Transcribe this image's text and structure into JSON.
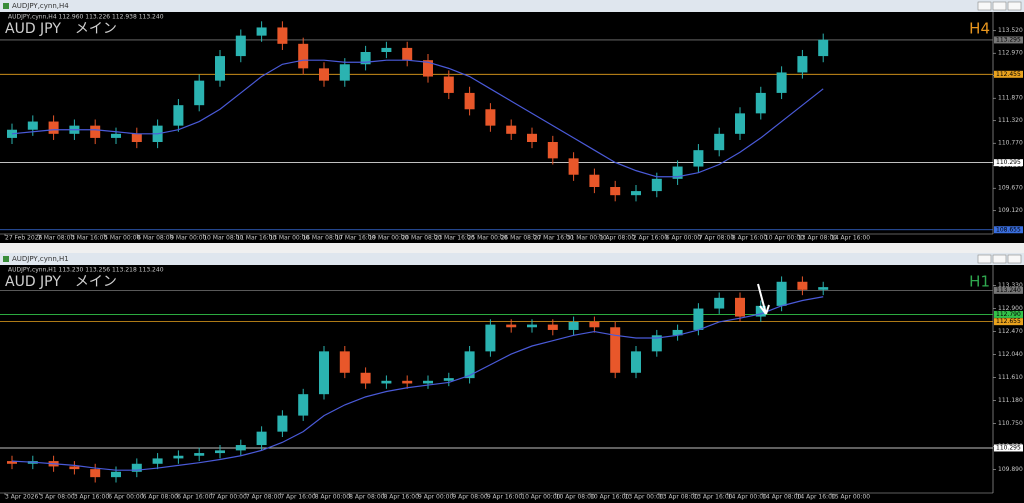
{
  "chart_data": [
    {
      "type": "candlestick",
      "window_title": "AUDJPY,cynn,H4",
      "info": "AUDJPY,cynn,H4  112.960 113.226 112.938 113.240",
      "title": "AUD JPY　メイン",
      "timeframe": "H4",
      "timeframe_color": "#e8961e",
      "up_color": "#2bb3b1",
      "down_color": "#e8572a",
      "ma_color": "#4a5ad8",
      "ylim": [
        108.6,
        113.88
      ],
      "yticks": [
        {
          "value": 109.12,
          "label": "109.120"
        },
        {
          "value": 109.67,
          "label": "109.670"
        },
        {
          "value": 110.22,
          "label": "110.220"
        },
        {
          "value": 110.77,
          "label": "110.770"
        },
        {
          "value": 111.32,
          "label": "111.320"
        },
        {
          "value": 111.87,
          "label": "111.870"
        },
        {
          "value": 112.42,
          "label": "112.420"
        },
        {
          "value": 112.97,
          "label": "112.970"
        },
        {
          "value": 113.52,
          "label": "113.520"
        }
      ],
      "levels": [
        {
          "value": 113.295,
          "label": "113.295",
          "color": "#777777"
        },
        {
          "value": 112.455,
          "label": "112.455",
          "color": "#e8a21e"
        },
        {
          "value": 110.295,
          "label": "110.295",
          "color": "#ffffff"
        },
        {
          "value": 108.655,
          "label": "108.655",
          "color": "#3a6fe0"
        }
      ],
      "open": [
        110.9,
        111.1,
        111.3,
        111.0,
        111.2,
        110.9,
        111.0,
        110.8,
        111.2,
        111.7,
        112.3,
        112.9,
        113.4,
        113.6,
        113.2,
        112.6,
        112.3,
        112.7,
        113.0,
        113.1,
        112.8,
        112.4,
        112.0,
        111.6,
        111.2,
        111.0,
        110.8,
        110.4,
        110.0,
        109.7,
        109.5,
        109.6,
        109.9,
        110.2,
        110.6,
        111.0,
        111.5,
        112.0,
        112.5,
        112.9
      ],
      "high": [
        111.25,
        111.45,
        111.45,
        111.35,
        111.35,
        111.15,
        111.15,
        111.35,
        111.85,
        112.45,
        113.05,
        113.55,
        113.75,
        113.75,
        113.35,
        112.75,
        112.85,
        113.15,
        113.25,
        113.25,
        112.95,
        112.55,
        112.15,
        111.75,
        111.35,
        111.15,
        110.95,
        110.55,
        110.15,
        109.85,
        109.75,
        110.05,
        110.35,
        110.75,
        111.15,
        111.65,
        112.15,
        112.65,
        113.05,
        113.45
      ],
      "low": [
        110.75,
        110.95,
        110.85,
        110.85,
        110.75,
        110.75,
        110.65,
        110.65,
        111.05,
        111.55,
        112.15,
        112.75,
        113.25,
        113.05,
        112.45,
        112.15,
        112.15,
        112.55,
        112.85,
        112.65,
        112.25,
        111.85,
        111.45,
        111.05,
        110.85,
        110.65,
        110.25,
        109.85,
        109.55,
        109.35,
        109.35,
        109.45,
        109.75,
        110.05,
        110.45,
        110.85,
        111.35,
        111.85,
        112.35,
        112.75
      ],
      "close": [
        111.1,
        111.3,
        111.0,
        111.2,
        110.9,
        111.0,
        110.8,
        111.2,
        111.7,
        112.3,
        112.9,
        113.4,
        113.6,
        113.2,
        112.6,
        112.3,
        112.7,
        113.0,
        113.1,
        112.8,
        112.4,
        112.0,
        111.6,
        111.2,
        111.0,
        110.8,
        110.4,
        110.0,
        109.7,
        109.5,
        109.6,
        109.9,
        110.2,
        110.6,
        111.0,
        111.5,
        112.0,
        112.5,
        112.9,
        113.3
      ],
      "ma": [
        111.0,
        111.05,
        111.1,
        111.1,
        111.1,
        111.05,
        111.0,
        111.0,
        111.1,
        111.3,
        111.6,
        112.0,
        112.4,
        112.7,
        112.8,
        112.8,
        112.75,
        112.75,
        112.8,
        112.8,
        112.75,
        112.6,
        112.4,
        112.1,
        111.8,
        111.5,
        111.2,
        110.9,
        110.6,
        110.3,
        110.1,
        109.95,
        109.95,
        110.05,
        110.25,
        110.55,
        110.9,
        111.3,
        111.7,
        112.1
      ],
      "time_labels": [
        "27 Feb 2026",
        "2 Mar 08:00",
        "3 Mar 16:00",
        "5 Mar 00:00",
        "6 Mar 08:00",
        "9 Mar 00:00",
        "10 Mar 08:00",
        "11 Mar 16:00",
        "13 Mar 00:00",
        "16 Mar 08:00",
        "17 Mar 16:00",
        "19 Mar 00:00",
        "20 Mar 08:00",
        "23 Mar 16:00",
        "25 Mar 00:00",
        "26 Mar 08:00",
        "27 Mar 16:00",
        "31 Mar 00:00",
        "1 Apr 08:00",
        "2 Apr 16:00",
        "6 Apr 00:00",
        "7 Apr 08:00",
        "8 Apr 16:00",
        "10 Apr 00:00",
        "13 Apr 08:00",
        "14 Apr 16:00"
      ]
    },
    {
      "type": "candlestick",
      "window_title": "AUDJPY,cynn,H1",
      "info": "AUDJPY,cynn,H1  113.230 113.256 113.218 113.240",
      "title": "AUD JPY　メイン",
      "timeframe": "H1",
      "timeframe_color": "#2fa84f",
      "up_color": "#2bb3b1",
      "down_color": "#e8572a",
      "ma_color": "#4a5ad8",
      "ylim": [
        109.51,
        113.62
      ],
      "yticks": [
        {
          "value": 109.89,
          "label": "109.890"
        },
        {
          "value": 110.32,
          "label": "110.320"
        },
        {
          "value": 110.75,
          "label": "110.750"
        },
        {
          "value": 111.18,
          "label": "111.180"
        },
        {
          "value": 111.61,
          "label": "111.610"
        },
        {
          "value": 112.04,
          "label": "112.040"
        },
        {
          "value": 112.47,
          "label": "112.470"
        },
        {
          "value": 112.9,
          "label": "112.900"
        },
        {
          "value": 113.33,
          "label": "113.330"
        }
      ],
      "levels": [
        {
          "value": 113.24,
          "label": "113.240",
          "color": "#777777"
        },
        {
          "value": 112.79,
          "label": "112.790",
          "color": "#33c24a"
        },
        {
          "value": 112.655,
          "label": "112.655",
          "color": "#e8a21e"
        },
        {
          "value": 110.295,
          "label": "110.295",
          "color": "#ffffff"
        }
      ],
      "open": [
        110.05,
        110.0,
        110.05,
        109.95,
        109.9,
        109.75,
        109.85,
        110.0,
        110.1,
        110.15,
        110.2,
        110.25,
        110.35,
        110.6,
        110.9,
        111.3,
        112.1,
        111.7,
        111.5,
        111.55,
        111.5,
        111.55,
        111.6,
        112.1,
        112.6,
        112.55,
        112.6,
        112.5,
        112.65,
        112.55,
        111.7,
        112.1,
        112.4,
        112.5,
        112.9,
        113.1,
        112.75,
        112.95,
        113.4,
        113.25
      ],
      "high": [
        110.15,
        110.15,
        110.15,
        110.05,
        110.0,
        109.95,
        110.1,
        110.2,
        110.25,
        110.3,
        110.35,
        110.45,
        110.7,
        111.0,
        111.4,
        112.2,
        112.2,
        111.8,
        111.65,
        111.65,
        111.65,
        111.7,
        112.2,
        112.7,
        112.7,
        112.7,
        112.7,
        112.75,
        112.75,
        112.65,
        112.2,
        112.5,
        112.6,
        113.0,
        113.2,
        113.2,
        113.05,
        113.5,
        113.5,
        113.4
      ],
      "low": [
        109.9,
        109.9,
        109.85,
        109.8,
        109.65,
        109.65,
        109.75,
        109.9,
        110.0,
        110.05,
        110.1,
        110.15,
        110.25,
        110.5,
        110.8,
        111.2,
        111.6,
        111.4,
        111.4,
        111.4,
        111.4,
        111.45,
        111.5,
        112.0,
        112.45,
        112.45,
        112.4,
        112.4,
        112.45,
        111.6,
        111.6,
        112.0,
        112.3,
        112.4,
        112.8,
        112.65,
        112.65,
        112.85,
        113.15,
        113.15
      ],
      "close": [
        110.0,
        110.05,
        109.95,
        109.9,
        109.75,
        109.85,
        110.0,
        110.1,
        110.15,
        110.2,
        110.25,
        110.35,
        110.6,
        110.9,
        111.3,
        112.1,
        111.7,
        111.5,
        111.55,
        111.5,
        111.55,
        111.6,
        112.1,
        112.6,
        112.55,
        112.6,
        112.5,
        112.65,
        112.55,
        111.7,
        112.1,
        112.4,
        112.5,
        112.9,
        113.1,
        112.75,
        112.95,
        113.4,
        113.25,
        113.3
      ],
      "ma": [
        110.05,
        110.03,
        110.0,
        109.97,
        109.92,
        109.88,
        109.88,
        109.92,
        109.97,
        110.02,
        110.08,
        110.15,
        110.25,
        110.4,
        110.6,
        110.9,
        111.1,
        111.25,
        111.35,
        111.42,
        111.47,
        111.52,
        111.65,
        111.85,
        112.05,
        112.2,
        112.3,
        112.4,
        112.47,
        112.4,
        112.35,
        112.35,
        112.4,
        112.5,
        112.65,
        112.72,
        112.8,
        112.95,
        113.05,
        113.12
      ],
      "time_labels": [
        "3 Apr 2026",
        "3 Apr 08:00",
        "3 Apr 16:00",
        "6 Apr 00:00",
        "6 Apr 08:00",
        "6 Apr 16:00",
        "7 Apr 00:00",
        "7 Apr 08:00",
        "7 Apr 16:00",
        "8 Apr 00:00",
        "8 Apr 08:00",
        "8 Apr 16:00",
        "9 Apr 00:00",
        "9 Apr 08:00",
        "9 Apr 16:00",
        "10 Apr 00:00",
        "10 Apr 08:00",
        "10 Apr 16:00",
        "13 Apr 00:00",
        "13 Apr 08:00",
        "13 Apr 16:00",
        "14 Apr 00:00",
        "14 Apr 08:00",
        "14 Apr 16:00",
        "15 Apr 00:00"
      ]
    }
  ]
}
